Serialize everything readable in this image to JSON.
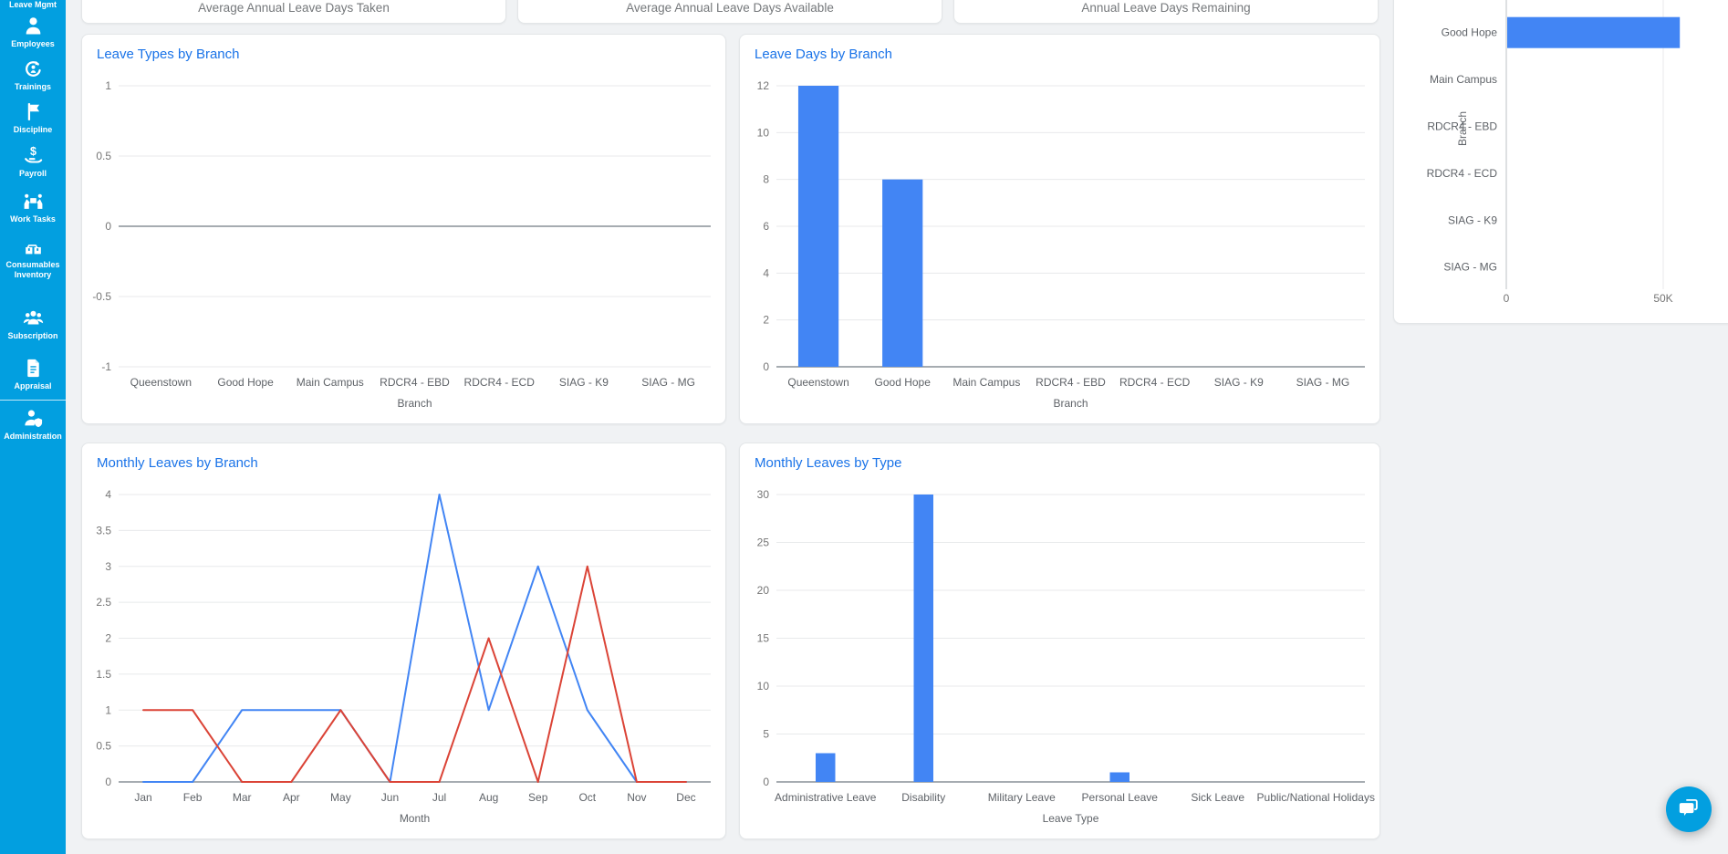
{
  "sidebar": {
    "items": [
      {
        "label": "Leave Mgmt"
      },
      {
        "label": "Employees"
      },
      {
        "label": "Trainings"
      },
      {
        "label": "Discipline"
      },
      {
        "label": "Payroll"
      },
      {
        "label": "Work Tasks"
      },
      {
        "label": "Consumables Inventory"
      },
      {
        "label": "Subscription"
      },
      {
        "label": "Appraisal"
      },
      {
        "label": "Administration"
      }
    ]
  },
  "stat_cards": [
    {
      "title": "Average Annual Leave Days Taken"
    },
    {
      "title": "Average Annual Leave Days Available"
    },
    {
      "title": "Annual Leave Days Remaining"
    }
  ],
  "colors": {
    "sidebar_bg": "#029FE0",
    "page_bg": "#F0F2F4",
    "title_blue": "#1A73E8",
    "bar_blue": "#4285F4",
    "line_blue": "#4285F4",
    "line_red": "#DB4437",
    "grid": "#E8EAEB",
    "zero_line": "#9AA0A6",
    "tick_text": "#757575",
    "category_text": "#5F6368"
  },
  "chart_data": [
    {
      "id": "leave-types-by-branch",
      "type": "bar",
      "title": "Leave Types by Branch",
      "categories": [
        "Queenstown",
        "Good Hope",
        "Main Campus",
        "RDCR4 - EBD",
        "RDCR4 - ECD",
        "SIAG - K9",
        "SIAG - MG"
      ],
      "values": [
        0,
        0,
        0,
        0,
        0,
        0,
        0
      ],
      "xlabel": "Branch",
      "ylabel": "",
      "ylim": [
        -1,
        1
      ],
      "yticks": [
        1,
        0.5,
        0,
        -0.5,
        -1
      ],
      "grid": true,
      "legend": "none"
    },
    {
      "id": "leave-days-by-branch",
      "type": "bar",
      "title": "Leave Days by Branch",
      "categories": [
        "Queenstown",
        "Good Hope",
        "Main Campus",
        "RDCR4 - EBD",
        "RDCR4 - ECD",
        "SIAG - K9",
        "SIAG - MG"
      ],
      "values": [
        12,
        8,
        0,
        0,
        0,
        0,
        0
      ],
      "xlabel": "Branch",
      "ylabel": "",
      "ylim": [
        0,
        12
      ],
      "yticks": [
        0,
        2,
        4,
        6,
        8,
        10,
        12
      ],
      "grid": true,
      "legend": "none"
    },
    {
      "id": "branch-value-horizontal-bar",
      "type": "bar-horizontal",
      "title": "",
      "categories": [
        "Good Hope",
        "Main Campus",
        "RDCR4 - EBD",
        "RDCR4 - ECD",
        "SIAG - K9",
        "SIAG - MG"
      ],
      "values": [
        55000,
        0,
        0,
        0,
        0,
        0
      ],
      "ylabel": "Branch",
      "xticks": [
        {
          "label": "0",
          "value": 0
        },
        {
          "label": "50K",
          "value": 50000
        }
      ],
      "xlim": [
        0,
        50000
      ],
      "grid": true,
      "legend": "none"
    },
    {
      "id": "monthly-leaves-by-branch",
      "type": "line",
      "title": "Monthly Leaves by Branch",
      "x": [
        "Jan",
        "Feb",
        "Mar",
        "Apr",
        "May",
        "Jun",
        "Jul",
        "Aug",
        "Sep",
        "Oct",
        "Nov",
        "Dec"
      ],
      "series": [
        {
          "color": "#4285F4",
          "values": [
            0,
            0,
            1,
            1,
            1,
            0,
            4,
            1,
            3,
            1,
            0,
            0
          ]
        },
        {
          "color": "#DB4437",
          "values": [
            1,
            1,
            0,
            0,
            1,
            0,
            0,
            2,
            0,
            3,
            0,
            0
          ]
        }
      ],
      "xlabel": "Month",
      "ylabel": "",
      "ylim": [
        0,
        4
      ],
      "yticks": [
        0,
        0.5,
        1,
        1.5,
        2,
        2.5,
        3,
        3.5,
        4
      ],
      "grid": true,
      "legend": "none"
    },
    {
      "id": "monthly-leaves-by-type",
      "type": "bar",
      "title": "Monthly Leaves by Type",
      "categories": [
        "Administrative Leave",
        "Disability",
        "Military Leave",
        "Personal Leave",
        "Sick Leave",
        "Public/National Holidays"
      ],
      "values": [
        3,
        30,
        0,
        1,
        0,
        0
      ],
      "xlabel": "Leave Type",
      "ylabel": "",
      "ylim": [
        0,
        30
      ],
      "yticks": [
        0,
        5,
        10,
        15,
        20,
        25,
        30
      ],
      "grid": true,
      "legend": "none"
    }
  ]
}
